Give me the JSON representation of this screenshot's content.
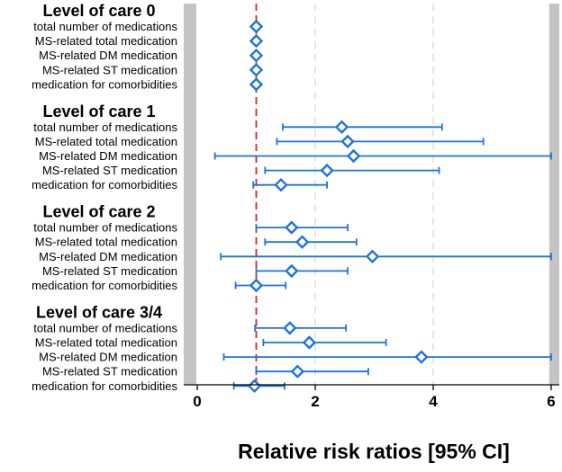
{
  "chart_data": {
    "type": "forest",
    "xlabel": "Relative risk ratios [95% CI]",
    "xlim": [
      -0.1,
      6.15
    ],
    "xticks": [
      0,
      2,
      4,
      6
    ],
    "reference_line": 1,
    "grid_lines": [
      2,
      4
    ],
    "colors": {
      "ci": "#1e73d8",
      "marker": "#1e73d8",
      "ref": "#e0201b",
      "band": "#c4c4c4",
      "grid": "#d9d9d9"
    },
    "groups": [
      {
        "title": "Level of care 0",
        "rows": [
          {
            "label": "total number of medications",
            "est": 1.0,
            "lo": 1.0,
            "hi": 1.0
          },
          {
            "label": "MS-related total medication",
            "est": 1.0,
            "lo": 1.0,
            "hi": 1.0
          },
          {
            "label": "MS-related DM medication",
            "est": 1.0,
            "lo": 1.0,
            "hi": 1.0
          },
          {
            "label": "MS-related ST medication",
            "est": 1.0,
            "lo": 1.0,
            "hi": 1.0
          },
          {
            "label": "medication for comorbidities",
            "est": 1.0,
            "lo": 1.0,
            "hi": 1.0
          }
        ]
      },
      {
        "title": "Level of care 1",
        "rows": [
          {
            "label": "total number of medications",
            "est": 2.45,
            "lo": 1.45,
            "hi": 4.15
          },
          {
            "label": "MS-related total medication",
            "est": 2.55,
            "lo": 1.35,
            "hi": 4.85
          },
          {
            "label": "MS-related DM medication",
            "est": 2.65,
            "lo": 0.3,
            "hi": 6.0
          },
          {
            "label": "MS-related ST medication",
            "est": 2.2,
            "lo": 1.15,
            "hi": 4.1
          },
          {
            "label": "medication for comorbidities",
            "est": 1.42,
            "lo": 0.95,
            "hi": 2.2
          }
        ]
      },
      {
        "title": "Level of care 2",
        "rows": [
          {
            "label": "total number of medications",
            "est": 1.6,
            "lo": 1.0,
            "hi": 2.55
          },
          {
            "label": "MS-related total medication",
            "est": 1.78,
            "lo": 1.15,
            "hi": 2.7
          },
          {
            "label": "MS-related DM medication",
            "est": 2.97,
            "lo": 0.4,
            "hi": 6.0
          },
          {
            "label": "MS-related ST medication",
            "est": 1.6,
            "lo": 1.0,
            "hi": 2.55
          },
          {
            "label": "medication for comorbidities",
            "est": 1.0,
            "lo": 0.65,
            "hi": 1.5
          }
        ]
      },
      {
        "title": "Level of care 3/4",
        "rows": [
          {
            "label": "total number of medications",
            "est": 1.57,
            "lo": 0.98,
            "hi": 2.52
          },
          {
            "label": "MS-related total medication",
            "est": 1.9,
            "lo": 1.12,
            "hi": 3.2
          },
          {
            "label": "MS-related DM medication",
            "est": 3.8,
            "lo": 0.45,
            "hi": 6.0
          },
          {
            "label": "MS-related ST medication",
            "est": 1.7,
            "lo": 1.0,
            "hi": 2.9
          },
          {
            "label": "medication for comorbidities",
            "est": 0.97,
            "lo": 0.62,
            "hi": 1.48
          }
        ]
      }
    ]
  }
}
